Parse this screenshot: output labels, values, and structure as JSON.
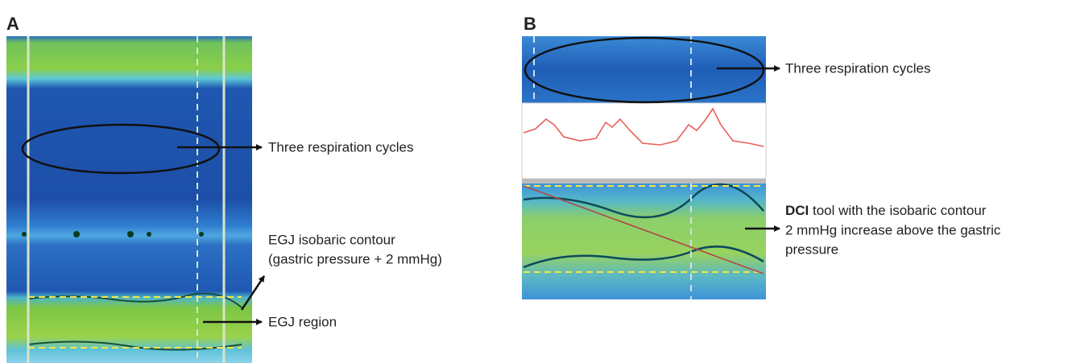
{
  "panels": [
    {
      "label": "A",
      "annotations": {
        "respiration": "Three respiration cycles",
        "contour": [
          "EGJ isobaric contour",
          "(gastric pressure + 2 mmHg)"
        ],
        "region": "EGJ region"
      }
    },
    {
      "label": "B",
      "annotations": {
        "respiration": "Three respiration cycles",
        "dci": {
          "bold": "DCI",
          "lines": [
            " tool with the isobaric contour",
            "2 mmHg increase above the gastric",
            "pressure"
          ]
        }
      }
    }
  ]
}
